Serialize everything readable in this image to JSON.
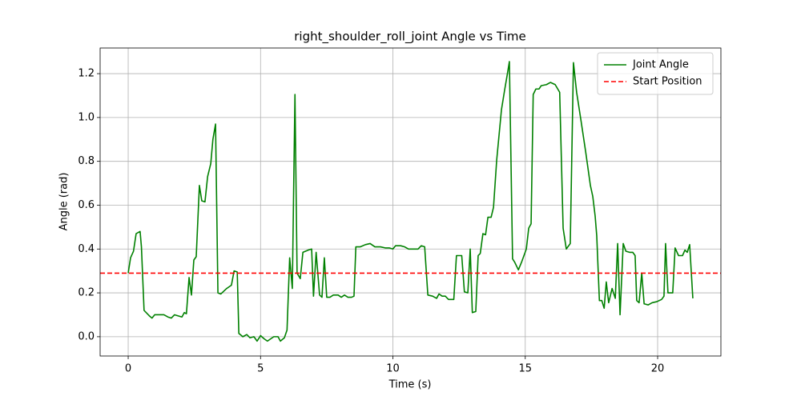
{
  "chart_data": {
    "type": "line",
    "title": "right_shoulder_roll_joint Angle vs Time",
    "xlabel": "Time (s)",
    "ylabel": "Angle (rad)",
    "x": [
      0,
      0.09,
      0.2,
      0.3,
      0.45,
      0.5,
      0.6,
      0.8,
      0.9,
      1.0,
      1.35,
      1.5,
      1.63,
      1.75,
      2.03,
      2.12,
      2.2,
      2.3,
      2.39,
      2.48,
      2.57,
      2.69,
      2.78,
      2.9,
      3.0,
      3.12,
      3.2,
      3.3,
      3.39,
      3.5,
      3.72,
      3.9,
      4.0,
      4.12,
      4.18,
      4.33,
      4.48,
      4.6,
      4.75,
      4.87,
      5.0,
      5.14,
      5.26,
      5.5,
      5.66,
      5.75,
      5.9,
      6.0,
      6.1,
      6.2,
      6.3,
      6.38,
      6.5,
      6.6,
      6.8,
      6.93,
      7.0,
      7.1,
      7.23,
      7.32,
      7.41,
      7.5,
      7.62,
      7.75,
      7.93,
      8.05,
      8.17,
      8.3,
      8.44,
      8.53,
      8.6,
      8.77,
      8.96,
      9.14,
      9.32,
      9.53,
      9.71,
      9.86,
      10.0,
      10.1,
      10.29,
      10.44,
      10.59,
      10.77,
      10.95,
      11.07,
      11.2,
      11.32,
      11.5,
      11.65,
      11.74,
      11.86,
      11.98,
      12.1,
      12.3,
      12.4,
      12.6,
      12.7,
      12.83,
      12.92,
      13.0,
      13.13,
      13.22,
      13.3,
      13.4,
      13.5,
      13.59,
      13.71,
      13.8,
      13.92,
      14.1,
      14.22,
      14.34,
      14.4,
      14.52,
      14.6,
      14.74,
      14.86,
      15.04,
      15.13,
      15.22,
      15.3,
      15.4,
      15.52,
      15.6,
      15.8,
      15.95,
      16.13,
      16.3,
      16.43,
      16.55,
      16.7,
      16.82,
      16.94,
      17.1,
      17.28,
      17.46,
      17.55,
      17.64,
      17.7,
      17.8,
      17.89,
      17.98,
      18.06,
      18.15,
      18.28,
      18.4,
      18.49,
      18.58,
      18.7,
      18.8,
      18.94,
      19.06,
      19.15,
      19.21,
      19.3,
      19.4,
      19.49,
      19.64,
      19.79,
      19.97,
      20.15,
      20.24,
      20.3,
      20.39,
      20.57,
      20.66,
      20.79,
      20.94,
      21.03,
      21.12,
      21.21,
      21.33
    ],
    "series": [
      {
        "name": "Joint Angle",
        "color": "#008000",
        "values": [
          0.29,
          0.36,
          0.39,
          0.47,
          0.48,
          0.41,
          0.12,
          0.095,
          0.085,
          0.1,
          0.1,
          0.09,
          0.085,
          0.1,
          0.09,
          0.11,
          0.105,
          0.27,
          0.19,
          0.35,
          0.365,
          0.69,
          0.62,
          0.615,
          0.73,
          0.79,
          0.9,
          0.97,
          0.2,
          0.195,
          0.22,
          0.235,
          0.3,
          0.295,
          0.015,
          0,
          0.01,
          -0.005,
          0,
          -0.02,
          0.005,
          -0.01,
          -0.02,
          0,
          0,
          -0.02,
          -0.005,
          0.03,
          0.36,
          0.22,
          1.105,
          0.29,
          0.265,
          0.385,
          0.395,
          0.4,
          0.185,
          0.385,
          0.19,
          0.18,
          0.36,
          0.18,
          0.18,
          0.19,
          0.19,
          0.18,
          0.19,
          0.18,
          0.18,
          0.185,
          0.41,
          0.41,
          0.42,
          0.425,
          0.41,
          0.41,
          0.405,
          0.405,
          0.4,
          0.415,
          0.415,
          0.41,
          0.4,
          0.4,
          0.4,
          0.415,
          0.41,
          0.19,
          0.185,
          0.175,
          0.195,
          0.185,
          0.185,
          0.17,
          0.17,
          0.37,
          0.37,
          0.205,
          0.2,
          0.4,
          0.11,
          0.115,
          0.37,
          0.38,
          0.47,
          0.465,
          0.545,
          0.545,
          0.59,
          0.805,
          1.035,
          1.125,
          1.21,
          1.255,
          0.355,
          0.34,
          0.305,
          0.34,
          0.4,
          0.495,
          0.515,
          1.105,
          1.13,
          1.13,
          1.145,
          1.15,
          1.16,
          1.15,
          1.115,
          0.495,
          0.4,
          0.425,
          1.25,
          1.115,
          0.99,
          0.845,
          0.69,
          0.64,
          0.55,
          0.46,
          0.165,
          0.165,
          0.13,
          0.25,
          0.155,
          0.22,
          0.175,
          0.425,
          0.1,
          0.425,
          0.39,
          0.385,
          0.385,
          0.37,
          0.165,
          0.155,
          0.29,
          0.15,
          0.145,
          0.155,
          0.16,
          0.17,
          0.185,
          0.425,
          0.2,
          0.2,
          0.405,
          0.37,
          0.37,
          0.395,
          0.385,
          0.42,
          0.175
        ]
      }
    ],
    "hlines": [
      {
        "name": "Start Position",
        "value": 0.29,
        "color": "#ff0000",
        "dashed": true
      }
    ],
    "xlim": [
      -1.06,
      22.39
    ],
    "ylim": [
      -0.088,
      1.317
    ],
    "xticks": [
      0,
      5,
      10,
      15,
      20
    ],
    "yticks": [
      {
        "value": 0,
        "label": "0.0"
      },
      0.2,
      0.4,
      0.6,
      0.8,
      {
        "value": 1,
        "label": "1.0"
      },
      1.2
    ],
    "grid": true,
    "legend": "upper right"
  }
}
